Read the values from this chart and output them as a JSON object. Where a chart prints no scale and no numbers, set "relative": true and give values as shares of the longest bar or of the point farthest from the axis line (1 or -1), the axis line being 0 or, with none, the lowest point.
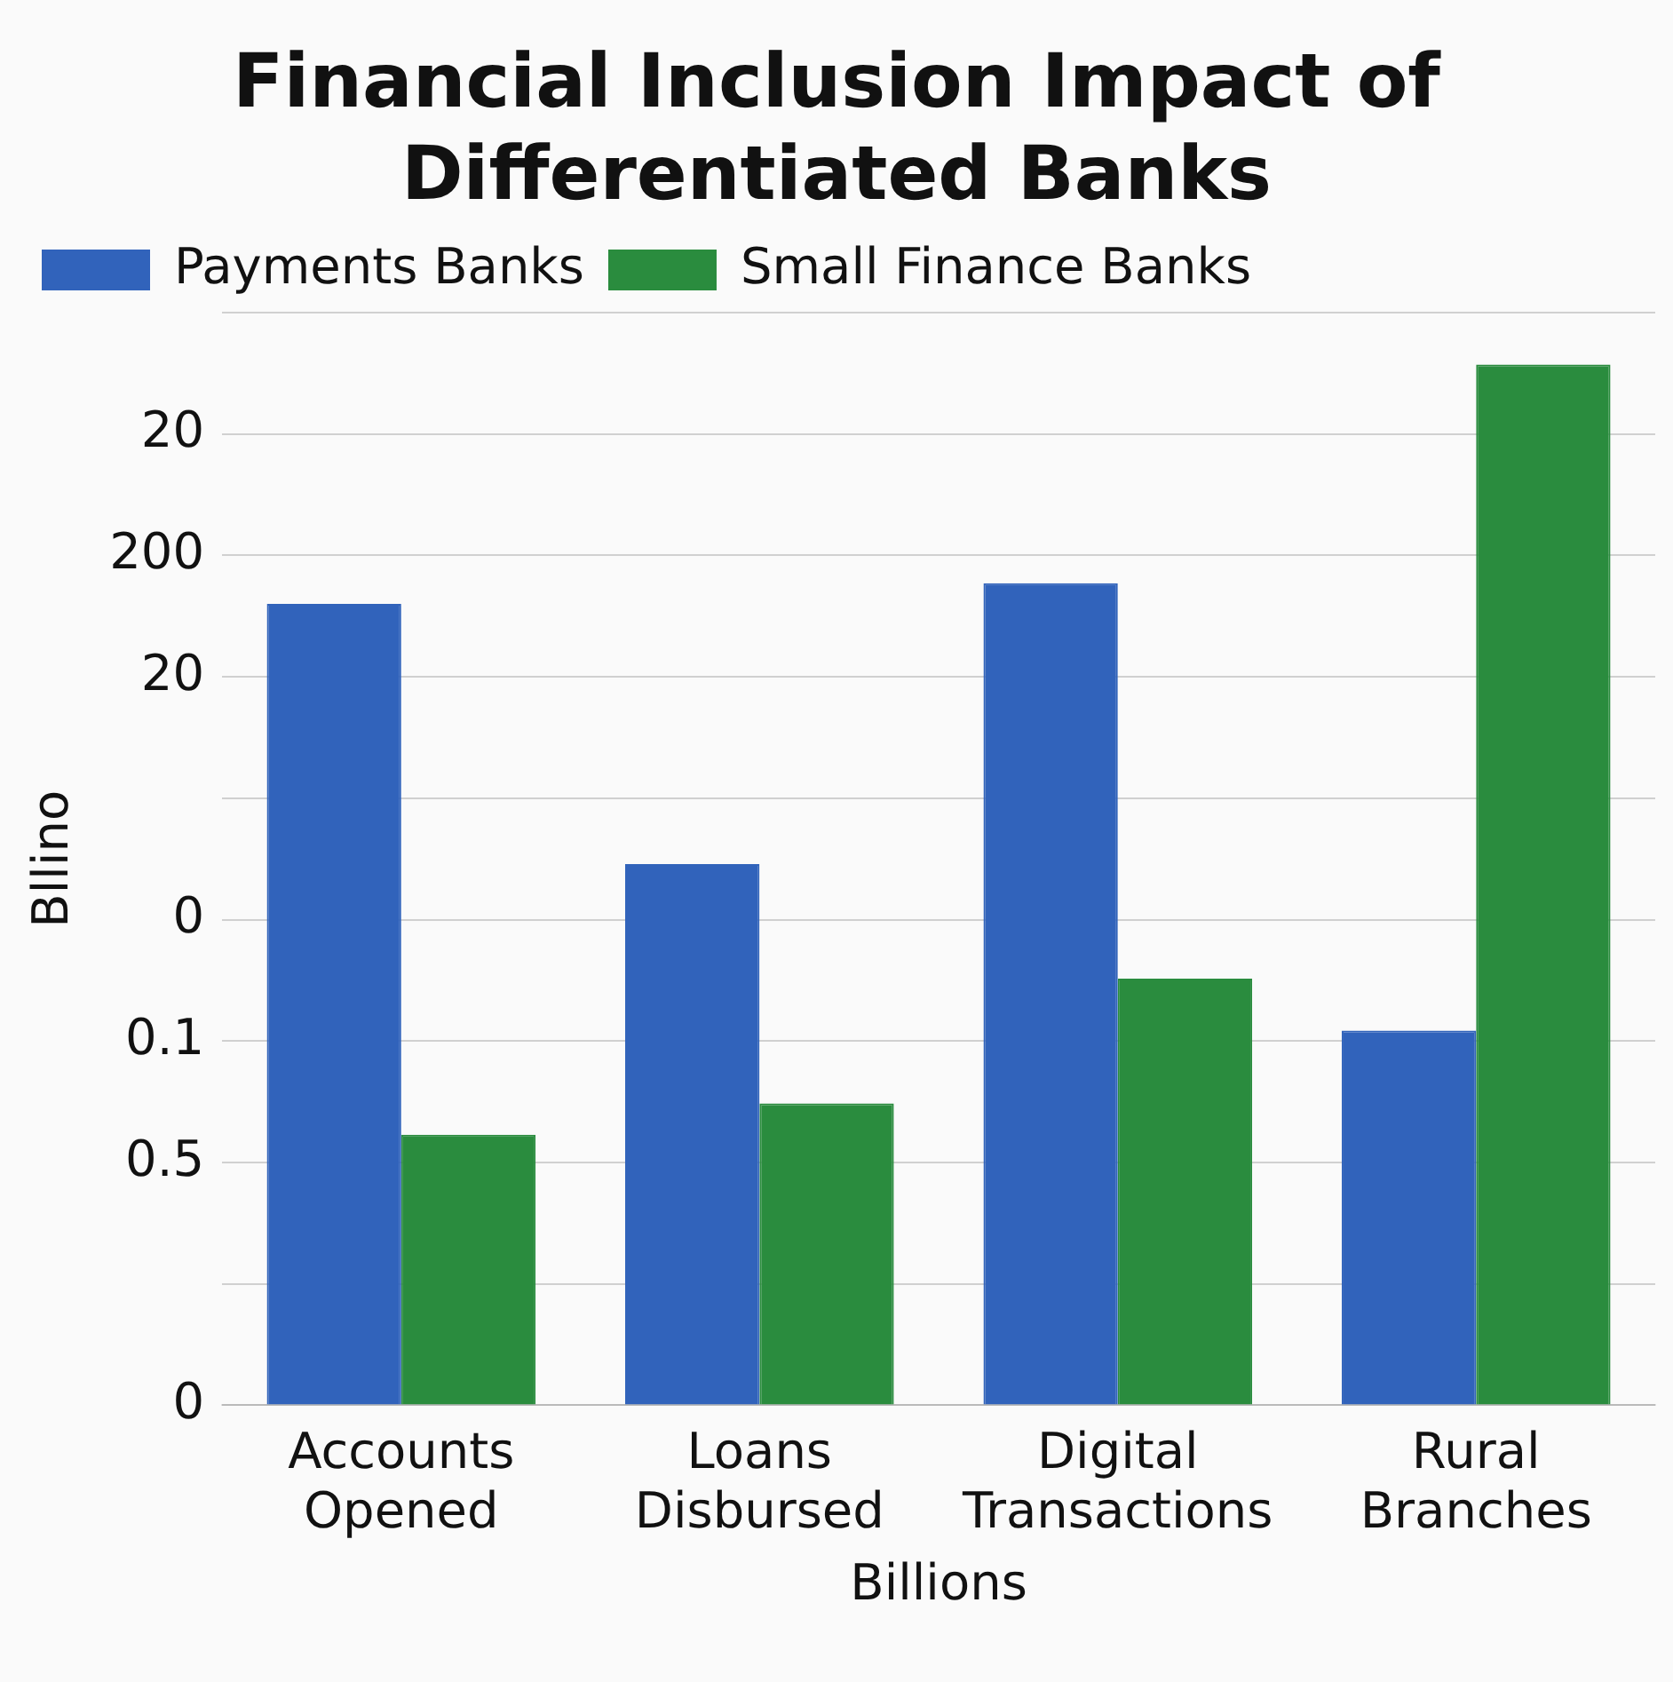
{
  "chart_data": {
    "type": "bar",
    "title": "Financial Inclusion Impact of Differentiated Banks",
    "xlabel": "Billions",
    "ylabel": "Bllino",
    "relative": true,
    "categories": [
      "Accounts Opened",
      "Loans Disbursed",
      "Digital Transactions",
      "Rural Branches"
    ],
    "series": [
      {
        "name": "Payments Banks",
        "color": "#3163bb",
        "values": [
          0.77,
          0.52,
          0.79,
          0.36
        ]
      },
      {
        "name": "Small Finance Banks",
        "color": "#2a8c3e",
        "values": [
          0.26,
          0.29,
          0.41,
          1
        ]
      }
    ],
    "annotations": [
      "20",
      "200",
      "20",
      "0",
      "0.1",
      "0.5",
      "0"
    ],
    "grid": "y",
    "legend": "top left"
  }
}
